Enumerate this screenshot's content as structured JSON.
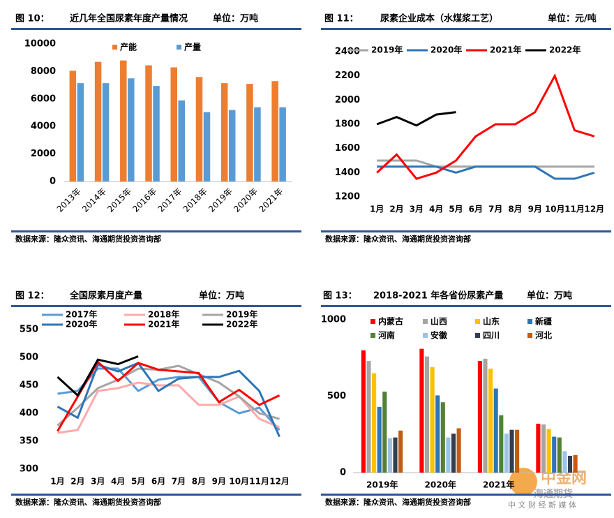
{
  "chart_data": [
    {
      "type": "bar",
      "figure": "图 10：",
      "title": "近几年全国尿素年度产量情况",
      "unit": "单位：万吨",
      "source": "数据来源：隆众资讯、海通期货投资咨询部",
      "categories": [
        "2013年",
        "2014年",
        "2015年",
        "2016年",
        "2017年",
        "2018年",
        "2019年",
        "2020年",
        "2021年"
      ],
      "series": [
        {
          "name": "产能",
          "color": "#ed7d31",
          "values": [
            8050,
            8700,
            8800,
            8450,
            8300,
            7600,
            7150,
            7100,
            7300
          ]
        },
        {
          "name": "产量",
          "color": "#5b9bd5",
          "values": [
            7150,
            7150,
            7500,
            6950,
            5900,
            5050,
            5200,
            5400,
            5400
          ]
        }
      ],
      "ylim": [
        0,
        10000
      ],
      "yticks": [
        0,
        2000,
        4000,
        6000,
        8000,
        10000
      ]
    },
    {
      "type": "line",
      "figure": "图 11：",
      "title": "尿素企业成本（水煤浆工艺）",
      "unit": "单位：元/吨",
      "source": "数据来源：隆众资讯、海通期货投资咨询部",
      "categories": [
        "1月",
        "2月",
        "3月",
        "4月",
        "5月",
        "6月",
        "7月",
        "8月",
        "9月",
        "10月",
        "11月",
        "12月"
      ],
      "series": [
        {
          "name": "2019年",
          "color": "#a5a5a5",
          "values": [
            1500,
            1500,
            1500,
            1450,
            1450,
            1450,
            1450,
            1450,
            1450,
            1450,
            1450,
            1450
          ]
        },
        {
          "name": "2020年",
          "color": "#2e75b6",
          "values": [
            1450,
            1450,
            1450,
            1450,
            1400,
            1450,
            1450,
            1450,
            1450,
            1350,
            1350,
            1400
          ]
        },
        {
          "name": "2021年",
          "color": "#ff0000",
          "values": [
            1400,
            1550,
            1350,
            1400,
            1500,
            1700,
            1800,
            1800,
            1900,
            2200,
            1750,
            1700
          ]
        },
        {
          "name": "2022年",
          "color": "#000000",
          "values": [
            1800,
            1860,
            1790,
            1880,
            1900,
            null,
            null,
            null,
            null,
            null,
            null,
            null
          ]
        }
      ],
      "ylim": [
        1200,
        2400
      ],
      "yticks": [
        1200,
        1400,
        1600,
        1800,
        2000,
        2200,
        2400
      ]
    },
    {
      "type": "line",
      "figure": "图 12：",
      "title": "全国尿素月度产量",
      "unit": "单位：万吨",
      "source": "数据来源：隆众资讯、海通期货投资咨询部",
      "categories": [
        "1月",
        "2月",
        "3月",
        "4月",
        "5月",
        "6月",
        "7月",
        "8月",
        "9月",
        "10月",
        "11月",
        "12月"
      ],
      "series": [
        {
          "name": "2017年",
          "color": "#5b9bd5",
          "values": [
            435,
            440,
            480,
            480,
            440,
            460,
            465,
            465,
            420,
            400,
            410,
            370
          ]
        },
        {
          "name": "2018年",
          "color": "#ffaaaa",
          "values": [
            365,
            370,
            440,
            445,
            455,
            450,
            450,
            415,
            415,
            430,
            390,
            375
          ]
        },
        {
          "name": "2019年",
          "color": "#a5a5a5",
          "values": [
            378,
            410,
            445,
            460,
            480,
            478,
            485,
            470,
            455,
            430,
            400,
            390
          ]
        },
        {
          "name": "2020年",
          "color": "#2e75b6",
          "values": [
            412,
            392,
            487,
            475,
            490,
            440,
            462,
            465,
            465,
            476,
            440,
            358
          ]
        },
        {
          "name": "2021年",
          "color": "#ff0000",
          "values": [
            368,
            430,
            492,
            458,
            490,
            478,
            475,
            472,
            420,
            442,
            415,
            432
          ]
        },
        {
          "name": "2022年",
          "color": "#000000",
          "values": [
            465,
            432,
            496,
            488,
            502,
            null,
            null,
            null,
            null,
            null,
            null,
            null
          ]
        }
      ],
      "ylim": [
        300,
        550
      ],
      "yticks": [
        300,
        350,
        400,
        450,
        500,
        550
      ]
    },
    {
      "type": "bar",
      "figure": "图 13：",
      "title": "2018-2021 年各省份尿素产量",
      "unit": "单位：万吨",
      "source": "数据来源：隆众资讯、海通期货投资咨询部",
      "categories": [
        "2019年",
        "2020年",
        "2021年",
        null
      ],
      "series": [
        {
          "name": "内蒙古",
          "color": "#ff0000",
          "values": [
            800,
            810,
            730,
            320
          ]
        },
        {
          "name": "山西",
          "color": "#a5a5a5",
          "values": [
            730,
            760,
            745,
            315
          ]
        },
        {
          "name": "山东",
          "color": "#ffc000",
          "values": [
            650,
            690,
            680,
            285
          ]
        },
        {
          "name": "新疆",
          "color": "#2e75b6",
          "values": [
            430,
            505,
            550,
            235
          ]
        },
        {
          "name": "河南",
          "color": "#548235",
          "values": [
            530,
            460,
            375,
            230
          ]
        },
        {
          "name": "安徽",
          "color": "#9dc3e6",
          "values": [
            225,
            230,
            255,
            140
          ]
        },
        {
          "name": "四川",
          "color": "#333f50",
          "values": [
            230,
            255,
            280,
            110
          ]
        },
        {
          "name": "河北",
          "color": "#c55a11",
          "values": [
            275,
            290,
            280,
            115
          ]
        }
      ],
      "ylim": [
        0,
        1000
      ],
      "yticks": [
        0,
        500,
        1000
      ]
    }
  ],
  "watermark": {
    "brand": "中金网",
    "sub": "海通期货",
    "tagline": "中 文 财 经 新 媒 体"
  }
}
